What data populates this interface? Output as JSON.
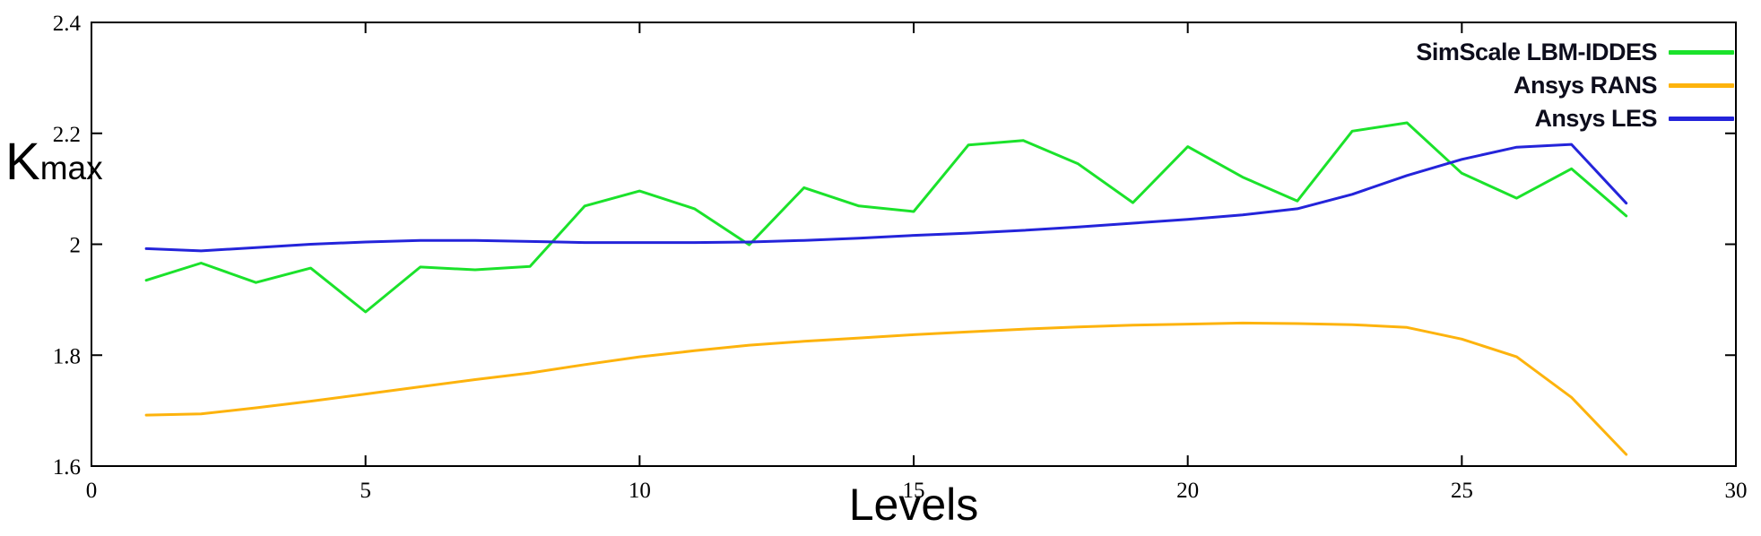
{
  "chart_data": {
    "type": "line",
    "grid": false,
    "legend_position": "top-right-inside",
    "background_color": "#ffffff",
    "border_color": "#000000",
    "x_axis": {
      "label": "Levels",
      "min": 0,
      "max": 30,
      "tick_values": [
        0,
        5,
        10,
        15,
        20,
        25,
        30
      ],
      "tick_labels": [
        "0",
        "5",
        "10",
        "15",
        "20",
        "25",
        "30"
      ]
    },
    "y_axis": {
      "label_main": "K",
      "label_sub": "max",
      "min": 1.6,
      "max": 2.4,
      "tick_values": [
        1.6,
        1.8,
        2.0,
        2.2,
        2.4
      ],
      "tick_labels": [
        "1.6",
        "1.8",
        "2",
        "2.2",
        "2.4"
      ]
    },
    "x": [
      1,
      2,
      3,
      4,
      5,
      6,
      7,
      8,
      9,
      10,
      11,
      12,
      13,
      14,
      15,
      16,
      17,
      18,
      19,
      20,
      21,
      22,
      23,
      24,
      25,
      26,
      27,
      28
    ],
    "series": [
      {
        "id": "simscale-lbm-iddes",
        "name": "SimScale LBM-IDDES",
        "color": "#1be22b",
        "values": [
          1.935,
          1.966,
          1.931,
          1.957,
          1.878,
          1.959,
          1.954,
          1.96,
          2.069,
          2.096,
          2.064,
          1.999,
          2.102,
          2.069,
          2.059,
          2.179,
          2.187,
          2.145,
          2.075,
          2.176,
          2.121,
          2.078,
          2.204,
          2.219,
          2.128,
          2.083,
          2.136,
          2.051
        ]
      },
      {
        "id": "ansys-rans",
        "name": "Ansys RANS",
        "color": "#fdb30d",
        "values": [
          1.692,
          1.694,
          1.705,
          1.717,
          1.73,
          1.743,
          1.756,
          1.768,
          1.783,
          1.797,
          1.808,
          1.818,
          1.825,
          1.831,
          1.837,
          1.842,
          1.847,
          1.851,
          1.854,
          1.856,
          1.858,
          1.857,
          1.855,
          1.85,
          1.829,
          1.797,
          1.724,
          1.621
        ]
      },
      {
        "id": "ansys-les",
        "name": "Ansys LES",
        "color": "#2424da",
        "values": [
          1.992,
          1.988,
          1.994,
          2.0,
          2.004,
          2.007,
          2.007,
          2.005,
          2.003,
          2.003,
          2.003,
          2.004,
          2.007,
          2.011,
          2.016,
          2.02,
          2.025,
          2.031,
          2.038,
          2.045,
          2.053,
          2.064,
          2.09,
          2.124,
          2.153,
          2.175,
          2.18,
          2.074
        ]
      }
    ]
  }
}
